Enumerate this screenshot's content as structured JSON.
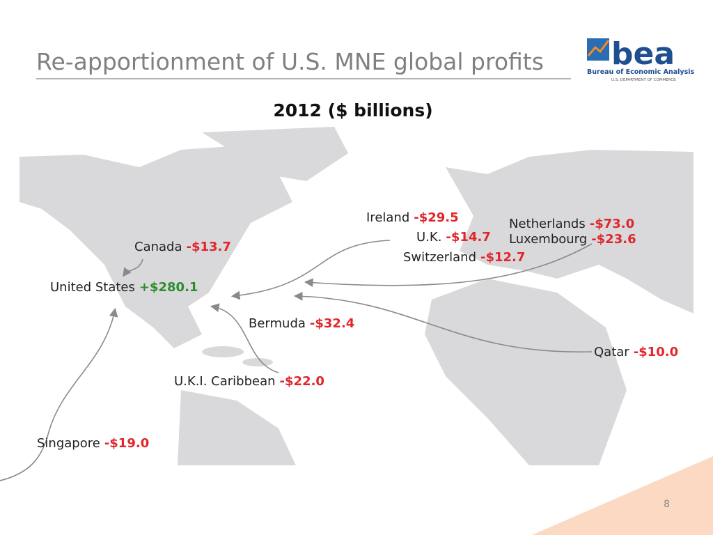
{
  "header": {
    "title": "Re-apportionment of U.S. MNE global profits"
  },
  "logo": {
    "mark": "bea",
    "name": "Bureau of Economic Analysis",
    "department": "U.S. DEPARTMENT OF COMMERCE"
  },
  "subtitle": "2012 ($ billions)",
  "labels": [
    {
      "name": "Ireland",
      "amount": "-$29.5"
    },
    {
      "name": "U.K.",
      "amount": "-$14.7"
    },
    {
      "name": "Switzerland",
      "amount": "-$12.7"
    },
    {
      "name": "Netherlands",
      "amount": "-$73.0"
    },
    {
      "name": "Luxembourg",
      "amount": "-$23.6"
    },
    {
      "name": "Canada",
      "amount": "-$13.7"
    },
    {
      "name": "United States",
      "amount": "+$280.1"
    },
    {
      "name": "Bermuda",
      "amount": "-$32.4"
    },
    {
      "name": "Qatar",
      "amount": "-$10.0"
    },
    {
      "name": "U.K.I. Caribbean",
      "amount": "-$22.0"
    },
    {
      "name": "Singapore",
      "amount": "-$19.0"
    }
  ],
  "page_number": "8"
}
